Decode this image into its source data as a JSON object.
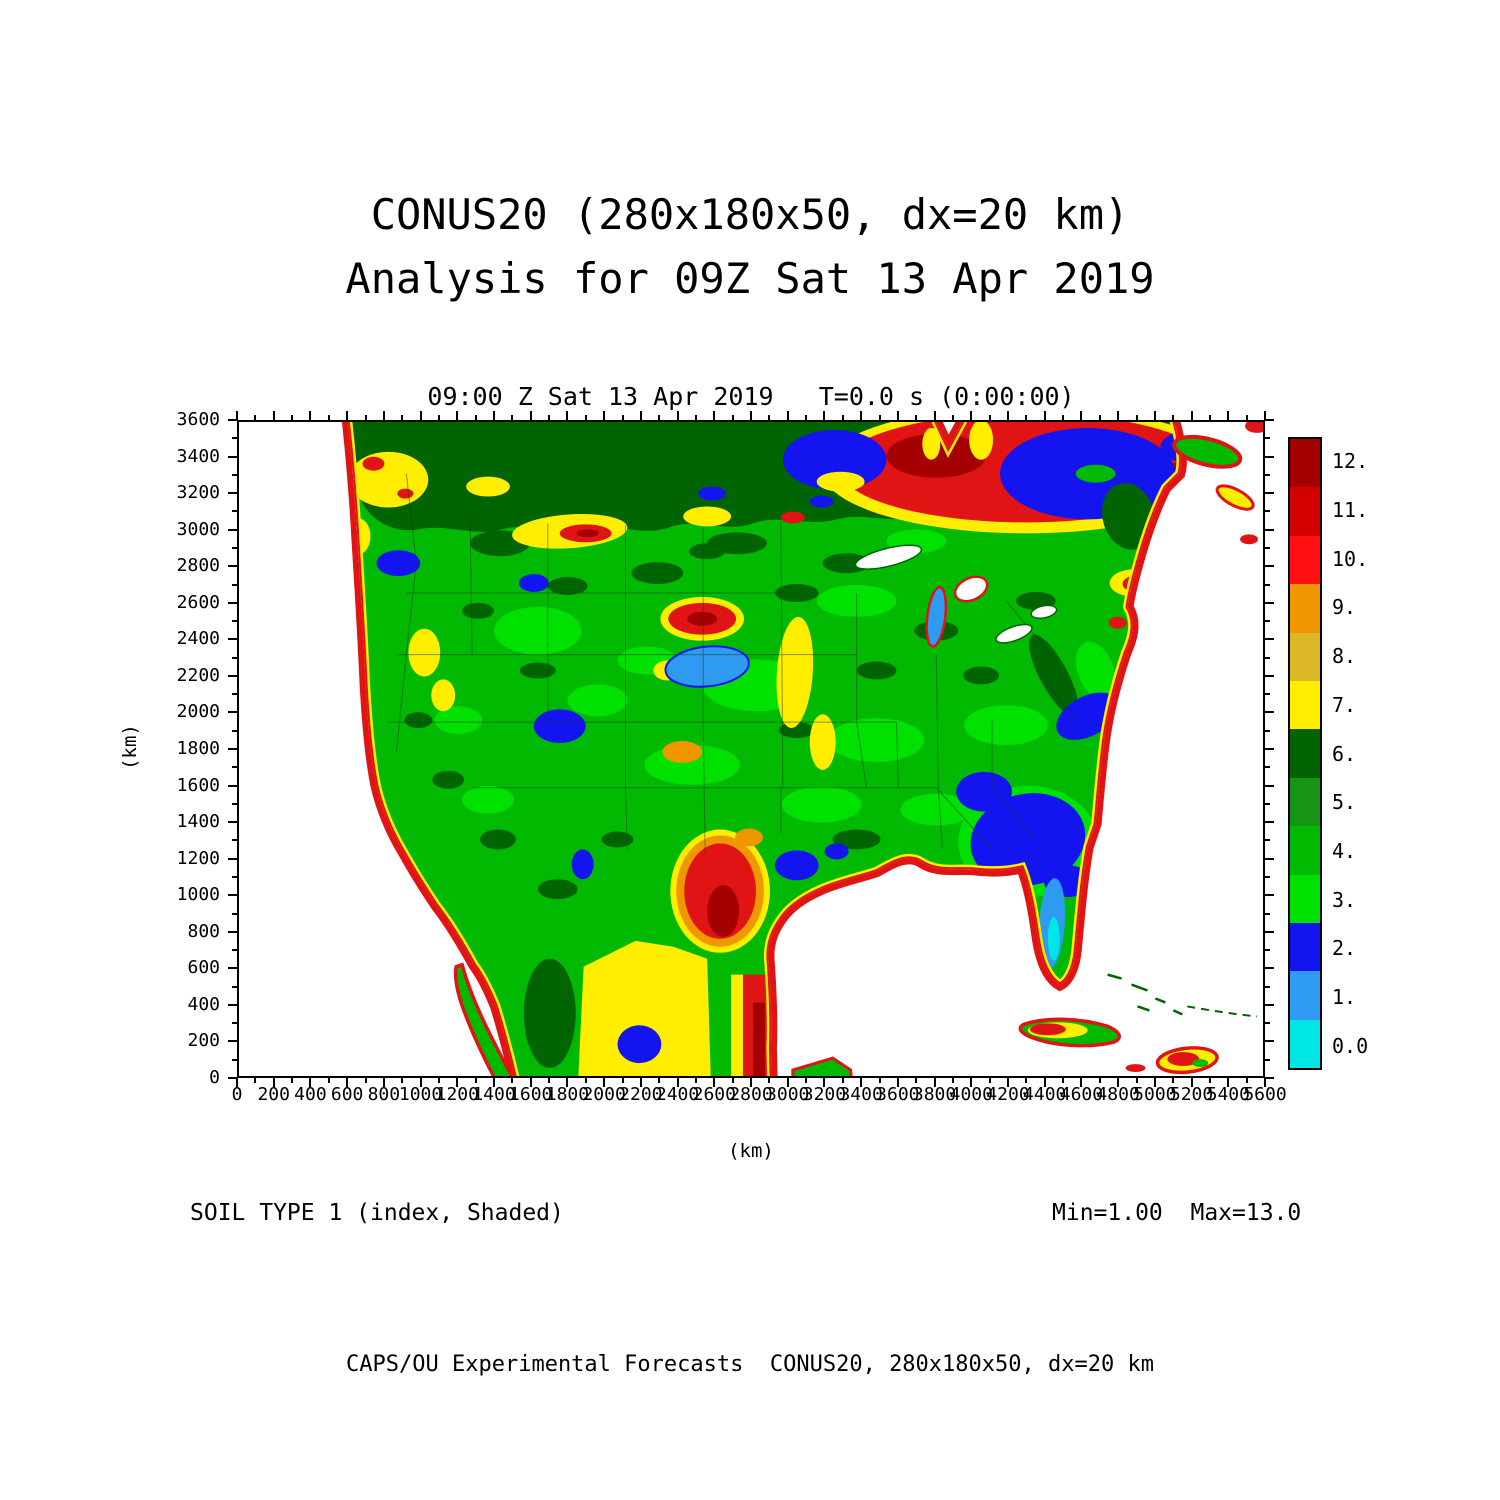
{
  "titles": {
    "line1": "CONUS20 (280x180x50, dx=20 km)",
    "line2": "Analysis for 09Z Sat 13 Apr 2019"
  },
  "plot_header": "09:00 Z Sat 13 Apr 2019   T=0.0 s (0:00:00)",
  "axes": {
    "x_unit": "(km)",
    "y_unit": "(km)",
    "x_ticks": [
      "0",
      "200",
      "400",
      "600",
      "800",
      "1000",
      "1200",
      "1400",
      "1600",
      "1800",
      "2000",
      "2200",
      "2400",
      "2600",
      "2800",
      "3000",
      "3200",
      "3400",
      "3600",
      "3800",
      "4000",
      "4200",
      "4400",
      "4600",
      "4800",
      "5000",
      "5200",
      "5400",
      "5600"
    ],
    "y_ticks": [
      "0",
      "200",
      "400",
      "600",
      "800",
      "1000",
      "1200",
      "1400",
      "1600",
      "1800",
      "2000",
      "2200",
      "2400",
      "2600",
      "2800",
      "3000",
      "3200",
      "3400",
      "3600"
    ]
  },
  "footer": {
    "left": "SOIL TYPE 1 (index, Shaded)",
    "right": "Min=1.00  Max=13.0",
    "credit": "CAPS/OU Experimental Forecasts  CONUS20, 280x180x50, dx=20 km"
  },
  "chart_data": {
    "type": "heatmap",
    "title": "CONUS20 (280x180x50, dx=20 km) Analysis for 09Z Sat 13 Apr 2019",
    "field": "SOIL TYPE 1 (index, Shaded)",
    "valid_time": "09:00 Z Sat 13 Apr 2019",
    "forecast_time": "T=0.0 s (0:00:00)",
    "min": 1.0,
    "max": 13.0,
    "xlabel": "(km)",
    "ylabel": "(km)",
    "x_range": [
      0,
      5600
    ],
    "y_range": [
      0,
      3600
    ],
    "tick_step_km": 200,
    "minor_tick_step_km": 100,
    "grid": false,
    "legend_position": "right",
    "colorbar": {
      "levels": [
        0,
        1,
        2,
        3,
        4,
        5,
        6,
        7,
        8,
        9,
        10,
        11,
        12,
        13
      ],
      "tick_labels": [
        "0.0",
        "1.",
        "2.",
        "3.",
        "4.",
        "5.",
        "6.",
        "7.",
        "8.",
        "9.",
        "10.",
        "11.",
        "12."
      ],
      "colors_bottom_to_top": [
        "#00E6E6",
        "#2E9BF0",
        "#1414F0",
        "#00E100",
        "#00B900",
        "#169416",
        "#006400",
        "#FFEE00",
        "#DCB828",
        "#F09600",
        "#FF0F0F",
        "#D40000",
        "#A50000"
      ]
    },
    "description": "Filled-contour map of soil type index over the 20-km CONUS model domain. Land is mostly green (index 4-6) with dark-green band across Canada, yellow/orange/red fringes along all coasts, large blue patch over the Southeast and over NE Canada, light-blue strip down Florida, red maxima over Texas/NE Canada, yellow block over northern Mexico; oceans are white."
  }
}
